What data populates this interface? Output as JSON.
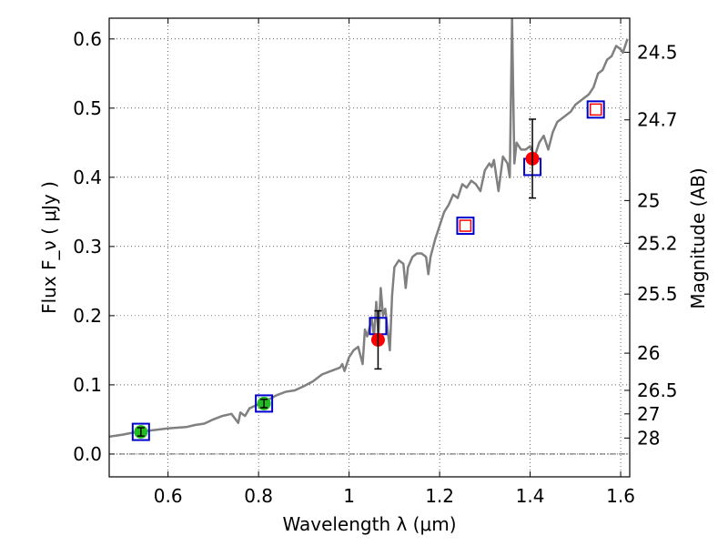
{
  "chart_data": {
    "type": "line",
    "xlabel": "Wavelength  λ (μm)",
    "ylabel": "Flux  F_ν  ( μJy )",
    "ylabel_right": "Magnitude (AB)",
    "xlim": [
      0.47,
      1.62
    ],
    "ylim": [
      -0.033,
      0.63
    ],
    "grid": true,
    "x_ticks": [
      0.6,
      0.8,
      1.0,
      1.2,
      1.4,
      1.6
    ],
    "x_tick_labels": [
      "0.6",
      "0.8",
      "1",
      "1.2",
      "1.4",
      "1.6"
    ],
    "y_ticks": [
      0.0,
      0.1,
      0.2,
      0.3,
      0.4,
      0.5,
      0.6
    ],
    "y_tick_labels": [
      "0.0",
      "0.1",
      "0.2",
      "0.3",
      "0.4",
      "0.5",
      "0.6"
    ],
    "right_axis_ticks": [
      {
        "label": "24.5",
        "flux": 0.5808
      },
      {
        "label": "24.7",
        "flux": 0.483
      },
      {
        "label": "25",
        "flux": 0.3664
      },
      {
        "label": "25.2",
        "flux": 0.3047
      },
      {
        "label": "25.5",
        "flux": 0.2312
      },
      {
        "label": "26",
        "flux": 0.1458
      },
      {
        "label": "26.5",
        "flux": 0.092
      },
      {
        "label": "27",
        "flux": 0.058
      },
      {
        "label": "28",
        "flux": 0.0231
      }
    ],
    "series": [
      {
        "name": "model spectrum",
        "kind": "line",
        "color": "#808080",
        "x": [
          0.47,
          0.5,
          0.53,
          0.56,
          0.6,
          0.62,
          0.64,
          0.66,
          0.68,
          0.7,
          0.72,
          0.74,
          0.755,
          0.76,
          0.77,
          0.78,
          0.8,
          0.82,
          0.84,
          0.86,
          0.88,
          0.9,
          0.92,
          0.94,
          0.96,
          0.98,
          0.985,
          0.99,
          1.0,
          1.01,
          1.02,
          1.03,
          1.035,
          1.04,
          1.05,
          1.055,
          1.06,
          1.065,
          1.07,
          1.075,
          1.08,
          1.09,
          1.095,
          1.1,
          1.11,
          1.12,
          1.125,
          1.13,
          1.14,
          1.15,
          1.16,
          1.17,
          1.175,
          1.18,
          1.19,
          1.2,
          1.21,
          1.22,
          1.23,
          1.24,
          1.25,
          1.26,
          1.27,
          1.28,
          1.29,
          1.3,
          1.31,
          1.315,
          1.32,
          1.33,
          1.34,
          1.35,
          1.355,
          1.36,
          1.365,
          1.37,
          1.38,
          1.39,
          1.4,
          1.41,
          1.42,
          1.43,
          1.44,
          1.45,
          1.46,
          1.47,
          1.48,
          1.49,
          1.5,
          1.51,
          1.52,
          1.53,
          1.54,
          1.55,
          1.56,
          1.57,
          1.58,
          1.59,
          1.6,
          1.605,
          1.61,
          1.615
        ],
        "y": [
          0.025,
          0.028,
          0.032,
          0.034,
          0.037,
          0.038,
          0.039,
          0.042,
          0.044,
          0.05,
          0.055,
          0.058,
          0.045,
          0.06,
          0.055,
          0.066,
          0.072,
          0.078,
          0.085,
          0.09,
          0.092,
          0.098,
          0.105,
          0.115,
          0.12,
          0.125,
          0.13,
          0.12,
          0.14,
          0.15,
          0.155,
          0.13,
          0.18,
          0.17,
          0.195,
          0.17,
          0.22,
          0.17,
          0.24,
          0.2,
          0.21,
          0.15,
          0.23,
          0.27,
          0.28,
          0.275,
          0.24,
          0.27,
          0.285,
          0.29,
          0.29,
          0.285,
          0.26,
          0.285,
          0.31,
          0.33,
          0.35,
          0.36,
          0.375,
          0.37,
          0.39,
          0.385,
          0.395,
          0.39,
          0.38,
          0.41,
          0.42,
          0.415,
          0.425,
          0.38,
          0.43,
          0.42,
          0.4,
          0.63,
          0.42,
          0.45,
          0.44,
          0.44,
          0.445,
          0.43,
          0.45,
          0.46,
          0.44,
          0.465,
          0.48,
          0.485,
          0.49,
          0.495,
          0.505,
          0.51,
          0.515,
          0.52,
          0.53,
          0.55,
          0.555,
          0.57,
          0.575,
          0.59,
          0.585,
          0.58,
          0.59,
          0.6
        ]
      },
      {
        "name": "model photometry",
        "kind": "hollow-square",
        "color": "#0000cc",
        "x": [
          0.54,
          0.812,
          1.064,
          1.257,
          1.405,
          1.545
        ],
        "y": [
          0.032,
          0.073,
          0.185,
          0.33,
          0.415,
          0.498
        ]
      },
      {
        "name": "upper limits",
        "kind": "small-hollow-square",
        "color": "#ff0000",
        "x": [
          1.257,
          1.545
        ],
        "y": [
          0.33,
          0.498
        ]
      },
      {
        "name": "HST optical detections",
        "kind": "filled-circle",
        "color": "#22bb22",
        "x": [
          0.54,
          0.812
        ],
        "y": [
          0.032,
          0.073
        ],
        "err": [
          0.006,
          0.006
        ]
      },
      {
        "name": "near-IR detections",
        "kind": "filled-circle",
        "color": "#ff0000",
        "x": [
          1.064,
          1.405
        ],
        "y": [
          0.165,
          0.427
        ],
        "err": [
          0.042,
          0.057
        ]
      }
    ]
  }
}
